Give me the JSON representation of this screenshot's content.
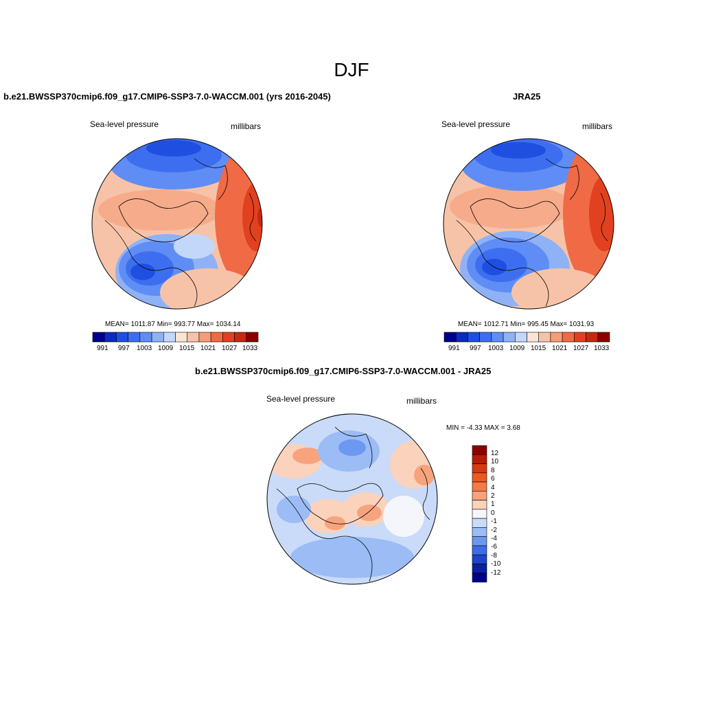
{
  "figure": {
    "season": "DJF"
  },
  "panels": [
    {
      "id": "model",
      "title": "b.e21.BWSSP370cmip6.f09_g17.CMIP6-SSP3-7.0-WACCM.001 (yrs 2016-2045)",
      "left_label": "Sea-level pressure",
      "right_label": "millibars",
      "stats": "MEAN= 1011.87  Min= 993.77  Max= 1034.14",
      "colorbar_labels": [
        "991",
        "997",
        "1003",
        "1009",
        "1015",
        "1021",
        "1027",
        "1033"
      ]
    },
    {
      "id": "obs",
      "title": "JRA25",
      "left_label": "Sea-level pressure",
      "right_label": "millibars",
      "stats": "MEAN= 1012.71  Min= 995.45  Max= 1031.93",
      "colorbar_labels": [
        "991",
        "997",
        "1003",
        "1009",
        "1015",
        "1021",
        "1027",
        "1033"
      ]
    },
    {
      "id": "diff",
      "title": "b.e21.BWSSP370cmip6.f09_g17.CMIP6-SSP3-7.0-WACCM.001 - JRA25",
      "left_label": "Sea-level pressure",
      "right_label": "millibars",
      "stats": "MIN =  -4.33 MAX =   3.68",
      "colorbar_labels": [
        "12",
        "10",
        "8",
        "6",
        "4",
        "2",
        "1",
        "0",
        "-1",
        "-2",
        "-4",
        "-6",
        "-8",
        "-10",
        "-12"
      ]
    }
  ],
  "colors": {
    "abs_scale": [
      "#00008b",
      "#0a2bbd",
      "#1f4fe0",
      "#3d6ef0",
      "#5f8df5",
      "#8fb2f7",
      "#c3d7fb",
      "#fbe4d6",
      "#f7c3a8",
      "#f59d78",
      "#f06a46",
      "#e2411f",
      "#c42a10",
      "#8b0000"
    ],
    "diff_scale": [
      "#8b0000",
      "#b81c05",
      "#d73a10",
      "#ec5a22",
      "#f47b45",
      "#f7a37e",
      "#fbd2bb",
      "#f4f6fb",
      "#c9dbf8",
      "#9bbcf5",
      "#6b98f0",
      "#3e6be6",
      "#1d44c9",
      "#0a20a0",
      "#00008b"
    ]
  }
}
